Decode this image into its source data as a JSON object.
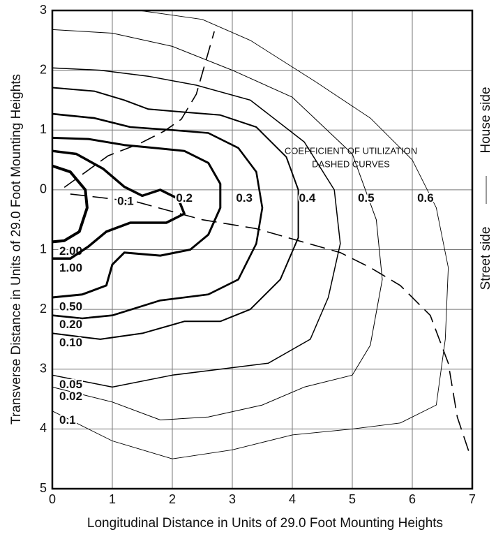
{
  "chart_data": {
    "type": "contour",
    "xlabel": "Longitudinal Distance in Units of 29.0 Foot Mounting Heights",
    "ylabel": "Transverse Distance in Units of 29.0 Foot Mounting Heights",
    "xlim": [
      0,
      7
    ],
    "ylim": [
      -5,
      3
    ],
    "xticks": [
      0,
      1,
      2,
      3,
      4,
      5,
      6,
      7
    ],
    "yticks": [
      3,
      2,
      1,
      0,
      {
        "value": -1,
        "label": "1"
      },
      {
        "value": -2,
        "label": "2"
      },
      {
        "value": -3,
        "label": "3"
      },
      {
        "value": -4,
        "label": "4"
      },
      {
        "value": -5,
        "label": "5"
      }
    ],
    "grid": true,
    "color": "#000000",
    "house_side": "House side",
    "street_side": "Street side",
    "annotation": [
      "COEFFICIENT OF UTILIZATION",
      "DASHED CURVES"
    ],
    "series": [
      {
        "name": "2.00",
        "x": [
          0,
          0.3,
          0.55,
          0.58,
          0.45,
          0.2,
          0
        ],
        "y": [
          0.4,
          0.3,
          0.0,
          -0.3,
          -0.7,
          -0.85,
          -0.87
        ]
      },
      {
        "name": "1.00",
        "x": [
          0,
          0.4,
          0.85,
          1.2,
          1.5,
          1.8,
          2.1,
          2.2,
          1.9,
          1.3,
          0.9,
          0.6,
          0.3,
          0
        ],
        "y": [
          0.65,
          0.6,
          0.35,
          0.05,
          -0.1,
          0,
          -0.15,
          -0.4,
          -0.55,
          -0.55,
          -0.7,
          -0.95,
          -1.15,
          -1.15
        ]
      },
      {
        "name": "0.50",
        "x": [
          0,
          0.6,
          1.2,
          1.7,
          2.2,
          2.6,
          2.8,
          2.8,
          2.6,
          2.3,
          1.8,
          1.2,
          1.0,
          0.9,
          0.5,
          0
        ],
        "y": [
          0.87,
          0.85,
          0.75,
          0.7,
          0.65,
          0.45,
          0.1,
          -0.3,
          -0.75,
          -1.0,
          -1.1,
          -1.05,
          -1.25,
          -1.6,
          -1.75,
          -1.8
        ]
      },
      {
        "name": "0.20",
        "x": [
          0,
          0.7,
          1.3,
          2.0,
          2.6,
          3.1,
          3.4,
          3.5,
          3.4,
          3.1,
          2.6,
          1.8,
          1.0,
          0.5,
          0
        ],
        "y": [
          1.27,
          1.2,
          1.05,
          1.0,
          0.95,
          0.7,
          0.3,
          -0.3,
          -0.9,
          -1.5,
          -1.75,
          -1.85,
          -2.1,
          -2.15,
          -2.1
        ]
      },
      {
        "name": "0.10",
        "x": [
          0,
          0.7,
          1.2,
          1.6,
          2.2,
          2.8,
          3.4,
          3.9,
          4.1,
          4.1,
          3.8,
          3.3,
          2.8,
          2.2,
          1.5,
          0.8,
          0
        ],
        "y": [
          1.71,
          1.65,
          1.5,
          1.35,
          1.3,
          1.25,
          1.05,
          0.55,
          0,
          -0.8,
          -1.5,
          -2.0,
          -2.2,
          -2.2,
          -2.4,
          -2.5,
          -2.4
        ]
      },
      {
        "name": "0.05",
        "x": [
          0,
          0.8,
          1.6,
          2.4,
          3.3,
          4.2,
          4.7,
          4.8,
          4.6,
          4.3,
          3.6,
          2.8,
          2.0,
          1.0,
          0
        ],
        "y": [
          2.04,
          2.0,
          1.9,
          1.75,
          1.5,
          0.8,
          0,
          -0.9,
          -1.8,
          -2.5,
          -2.9,
          -3.0,
          -3.1,
          -3.3,
          -3.1
        ]
      },
      {
        "name": "0.02",
        "x": [
          0,
          1,
          2,
          3,
          4,
          5,
          5.4,
          5.5,
          5.3,
          5.0,
          4.2,
          3.5,
          2.6,
          1.8,
          1.0,
          0
        ],
        "y": [
          2.68,
          2.62,
          2.4,
          2.0,
          1.55,
          0.6,
          -0.5,
          -1.5,
          -2.6,
          -3.1,
          -3.3,
          -3.6,
          -3.8,
          -3.85,
          -3.55,
          -3.3
        ]
      },
      {
        "name": "0.1",
        "x": [
          1.45,
          2.5,
          3.3,
          4.4,
          5.3,
          6.0,
          6.4,
          6.6,
          6.55,
          6.4,
          5.8,
          5.0,
          4.0,
          3.0,
          2.0,
          1.0,
          0
        ],
        "y": [
          3,
          2.85,
          2.5,
          1.8,
          1.2,
          0.5,
          -0.3,
          -1.3,
          -2.5,
          -3.6,
          -3.9,
          -4.0,
          -4.1,
          -4.35,
          -4.5,
          -4.2,
          -3.7
        ]
      }
    ],
    "cu_curves": [
      {
        "x": [
          0.2,
          0.93,
          1.45,
          1.86,
          2.15,
          2.4,
          2.7
        ],
        "y": [
          0.04,
          0.57,
          0.77,
          0.98,
          1.18,
          1.6,
          2.65
        ]
      },
      {
        "x": [
          0.3,
          1.4,
          2.5,
          3.4,
          4.1,
          4.8,
          5.3,
          5.8,
          6.3,
          6.6,
          6.75,
          6.95
        ],
        "y": [
          -0.07,
          -0.2,
          -0.5,
          -0.65,
          -0.85,
          -1.05,
          -1.3,
          -1.6,
          -2.1,
          -2.9,
          -3.8,
          -4.4
        ]
      }
    ],
    "cu_labels": [
      {
        "label": "0.1",
        "x": 1.22,
        "y": -0.2
      },
      {
        "label": "0.2",
        "x": 2.2,
        "y": -0.15
      },
      {
        "label": "0.3",
        "x": 3.2,
        "y": -0.15
      },
      {
        "label": "0.4",
        "x": 4.25,
        "y": -0.15
      },
      {
        "label": "0.5",
        "x": 5.23,
        "y": -0.15
      },
      {
        "label": "0.6",
        "x": 6.22,
        "y": -0.15
      }
    ]
  }
}
